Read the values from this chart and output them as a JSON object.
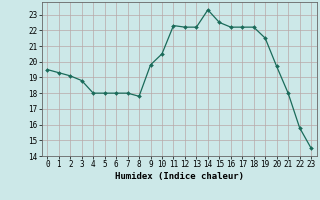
{
  "xlabel": "Humidex (Indice chaleur)",
  "x": [
    0,
    1,
    2,
    3,
    4,
    5,
    6,
    7,
    8,
    9,
    10,
    11,
    12,
    13,
    14,
    15,
    16,
    17,
    18,
    19,
    20,
    21,
    22,
    23
  ],
  "y": [
    19.5,
    19.3,
    19.1,
    18.8,
    18.0,
    18.0,
    18.0,
    18.0,
    17.8,
    19.8,
    20.5,
    22.3,
    22.2,
    22.2,
    23.3,
    22.5,
    22.2,
    22.2,
    22.2,
    21.5,
    19.7,
    18.0,
    15.8,
    14.5
  ],
  "line_color": "#1a6b5a",
  "marker_color": "#1a6b5a",
  "bg_color": "#cce8e8",
  "grid_color_major": "#b8a8a8",
  "grid_color_minor": "#d8cccc",
  "ylim": [
    14,
    23.8
  ],
  "xlim": [
    -0.5,
    23.5
  ],
  "yticks": [
    14,
    15,
    16,
    17,
    18,
    19,
    20,
    21,
    22,
    23
  ],
  "xticks": [
    0,
    1,
    2,
    3,
    4,
    5,
    6,
    7,
    8,
    9,
    10,
    11,
    12,
    13,
    14,
    15,
    16,
    17,
    18,
    19,
    20,
    21,
    22,
    23
  ],
  "label_fontsize": 6.5,
  "tick_fontsize": 5.5
}
